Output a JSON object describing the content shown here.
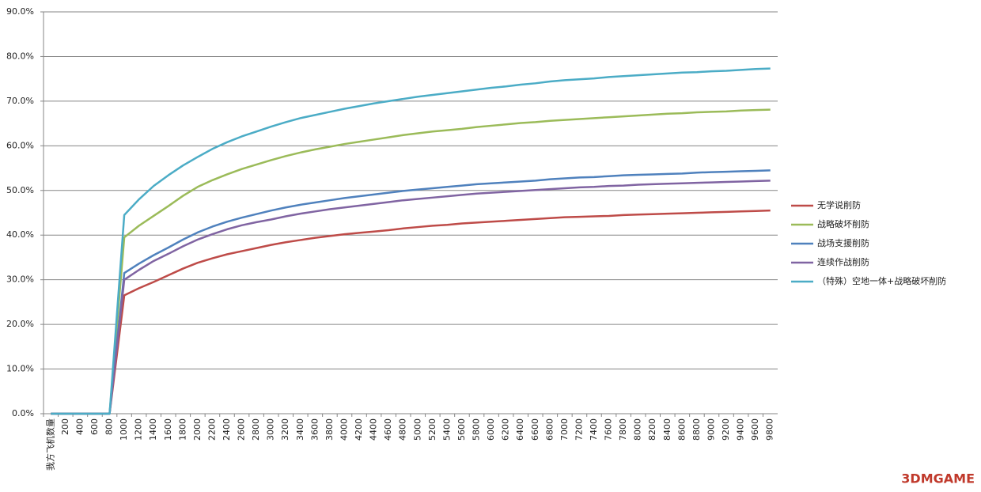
{
  "chart_data": {
    "type": "line",
    "categories": [
      "我方飞机数量",
      "200",
      "400",
      "600",
      "800",
      "1000",
      "1200",
      "1400",
      "1600",
      "1800",
      "2000",
      "2200",
      "2400",
      "2600",
      "2800",
      "3000",
      "3200",
      "3400",
      "3600",
      "3800",
      "4000",
      "4200",
      "4400",
      "4600",
      "4800",
      "5000",
      "5200",
      "5400",
      "5600",
      "5800",
      "6000",
      "6200",
      "6400",
      "6600",
      "6800",
      "7000",
      "7200",
      "7400",
      "7600",
      "7800",
      "8000",
      "8200",
      "8400",
      "8600",
      "8800",
      "9000",
      "9200",
      "9400",
      "9600",
      "9800"
    ],
    "series": [
      {
        "name": "无学说削防",
        "color": "#be4b48",
        "values": [
          0,
          0,
          0,
          0,
          0,
          26.5,
          28.1,
          29.5,
          31.0,
          32.5,
          33.8,
          34.8,
          35.7,
          36.4,
          37.1,
          37.8,
          38.4,
          38.9,
          39.4,
          39.8,
          40.2,
          40.5,
          40.8,
          41.1,
          41.5,
          41.8,
          42.1,
          42.3,
          42.6,
          42.8,
          43.0,
          43.2,
          43.4,
          43.6,
          43.8,
          44.0,
          44.1,
          44.2,
          44.3,
          44.5,
          44.6,
          44.7,
          44.8,
          44.9,
          45.0,
          45.1,
          45.2,
          45.3,
          45.4,
          45.5
        ]
      },
      {
        "name": "战略破坏削防",
        "color": "#9bbb59",
        "values": [
          0,
          0,
          0,
          0,
          0,
          39.5,
          42.1,
          44.3,
          46.5,
          48.8,
          50.8,
          52.3,
          53.6,
          54.8,
          55.8,
          56.8,
          57.7,
          58.5,
          59.2,
          59.8,
          60.4,
          60.9,
          61.4,
          61.9,
          62.4,
          62.8,
          63.2,
          63.5,
          63.8,
          64.2,
          64.5,
          64.8,
          65.1,
          65.3,
          65.6,
          65.8,
          66.0,
          66.2,
          66.4,
          66.6,
          66.8,
          67.0,
          67.2,
          67.3,
          67.5,
          67.6,
          67.7,
          67.9,
          68.0,
          68.1
        ]
      },
      {
        "name": "战场支援削防",
        "color": "#4f81bd",
        "values": [
          0,
          0,
          0,
          0,
          0,
          31.5,
          33.6,
          35.5,
          37.2,
          39.0,
          40.6,
          41.9,
          43.0,
          43.9,
          44.7,
          45.5,
          46.2,
          46.8,
          47.3,
          47.8,
          48.3,
          48.7,
          49.1,
          49.5,
          49.9,
          50.2,
          50.5,
          50.8,
          51.1,
          51.4,
          51.6,
          51.8,
          52.0,
          52.2,
          52.5,
          52.7,
          52.9,
          53.0,
          53.2,
          53.4,
          53.5,
          53.6,
          53.7,
          53.8,
          54.0,
          54.1,
          54.2,
          54.3,
          54.4,
          54.5
        ]
      },
      {
        "name": "连续作战削防",
        "color": "#8064a2",
        "values": [
          0,
          0,
          0,
          0,
          0,
          30.0,
          32.2,
          34.2,
          35.8,
          37.5,
          39.0,
          40.2,
          41.3,
          42.2,
          42.9,
          43.5,
          44.2,
          44.8,
          45.3,
          45.8,
          46.2,
          46.6,
          47.0,
          47.4,
          47.8,
          48.1,
          48.4,
          48.7,
          49.0,
          49.3,
          49.5,
          49.7,
          49.9,
          50.1,
          50.3,
          50.5,
          50.7,
          50.8,
          51.0,
          51.1,
          51.3,
          51.4,
          51.5,
          51.6,
          51.7,
          51.8,
          51.9,
          52.0,
          52.1,
          52.2
        ]
      },
      {
        "name": "（特殊）空地一体+战略破坏削防",
        "color": "#4bacc6",
        "values": [
          0,
          0,
          0,
          0,
          0,
          44.5,
          48.0,
          51.0,
          53.4,
          55.6,
          57.5,
          59.3,
          60.8,
          62.1,
          63.2,
          64.3,
          65.3,
          66.2,
          66.9,
          67.6,
          68.3,
          68.9,
          69.5,
          70.0,
          70.5,
          71.0,
          71.4,
          71.8,
          72.2,
          72.6,
          73.0,
          73.3,
          73.7,
          74.0,
          74.4,
          74.7,
          74.9,
          75.1,
          75.4,
          75.6,
          75.8,
          76.0,
          76.2,
          76.4,
          76.5,
          76.7,
          76.8,
          77.0,
          77.2,
          77.3
        ]
      }
    ],
    "ylim": [
      0,
      90
    ],
    "yticks": [
      {
        "value": 0,
        "label": "0.0%"
      },
      {
        "value": 10,
        "label": "10.0%"
      },
      {
        "value": 20,
        "label": "20.0%"
      },
      {
        "value": 30,
        "label": "30.0%"
      },
      {
        "value": 40,
        "label": "40.0%"
      },
      {
        "value": 50,
        "label": "50.0%"
      },
      {
        "value": 60,
        "label": "60.0%"
      },
      {
        "value": 70,
        "label": "70.0%"
      },
      {
        "value": 80,
        "label": "80.0%"
      },
      {
        "value": 90,
        "label": "90.0%"
      }
    ],
    "grid": true,
    "legend": "right",
    "watermark": "3DMGAME"
  }
}
